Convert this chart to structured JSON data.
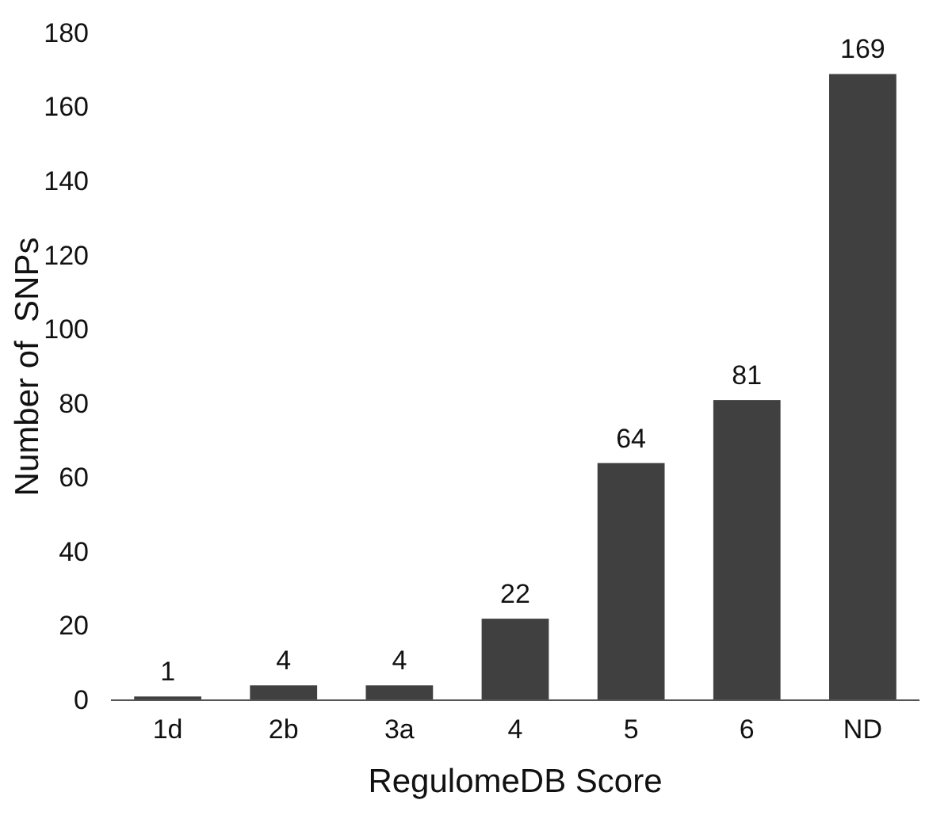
{
  "chart_data": {
    "type": "bar",
    "xlabel": "RegulomeDB Score",
    "ylabel": "Number of  SNPs",
    "categories": [
      "1d",
      "2b",
      "3a",
      "4",
      "5",
      "6",
      "ND"
    ],
    "values": [
      1,
      4,
      4,
      22,
      64,
      81,
      169
    ],
    "color": "#404040",
    "ylim": [
      0,
      180
    ],
    "yticks": [
      0,
      20,
      40,
      60,
      80,
      100,
      120,
      140,
      160,
      180
    ],
    "data_labels": true
  }
}
